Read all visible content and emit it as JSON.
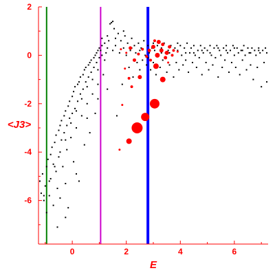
{
  "chart_data": {
    "type": "scatter",
    "title": "",
    "xlabel": "E",
    "ylabel": "<J3>",
    "xlim": [
      -1.25,
      7.25
    ],
    "ylim": [
      -7.8,
      2.0
    ],
    "x_ticks": [
      0,
      2,
      4,
      6
    ],
    "y_ticks": [
      2,
      0,
      -2,
      -4,
      -6
    ],
    "grid": false,
    "legend": "none",
    "colors": {
      "axes": "#ff0000",
      "tick_labels": "#ff0000",
      "axis_titles": "#ff0000",
      "black_points": "#000000",
      "red_points": "#ff0000"
    },
    "vlines": [
      {
        "x": -0.95,
        "color": "#008000"
      },
      {
        "x": 1.05,
        "color": "#cc00cc"
      },
      {
        "x": 2.8,
        "color": "#0000ff"
      }
    ],
    "red_points": [
      {
        "x": 2.4,
        "y": -3.0,
        "size": 8
      },
      {
        "x": 3.05,
        "y": -2.0,
        "size": 7
      },
      {
        "x": 2.7,
        "y": -2.55,
        "size": 6
      },
      {
        "x": 2.1,
        "y": -3.55,
        "size": 4
      },
      {
        "x": 3.35,
        "y": -1.0,
        "size": 4
      },
      {
        "x": 3.1,
        "y": -0.45,
        "size": 4
      },
      {
        "x": 1.75,
        "y": -3.9,
        "size": 1.5
      },
      {
        "x": 1.85,
        "y": -2.05,
        "size": 1.5
      },
      {
        "x": 2.5,
        "y": -0.9,
        "size": 3
      },
      {
        "x": 2.1,
        "y": -0.95,
        "size": 2
      },
      {
        "x": 2.2,
        "y": -1.3,
        "size": 2
      },
      {
        "x": 1.95,
        "y": -0.55,
        "size": 1.5
      },
      {
        "x": 2.3,
        "y": -0.2,
        "size": 2.5
      },
      {
        "x": 2.15,
        "y": 0.3,
        "size": 2.5
      },
      {
        "x": 2.6,
        "y": 0.25,
        "size": 2
      },
      {
        "x": 2.85,
        "y": 0.2,
        "size": 2.5
      },
      {
        "x": 3.0,
        "y": 0.35,
        "size": 3
      },
      {
        "x": 3.2,
        "y": 0.55,
        "size": 3
      },
      {
        "x": 3.35,
        "y": 0.45,
        "size": 2.5
      },
      {
        "x": 3.15,
        "y": 0.0,
        "size": 3.5
      },
      {
        "x": 3.5,
        "y": 0.1,
        "size": 3
      },
      {
        "x": 3.3,
        "y": 0.2,
        "size": 3
      },
      {
        "x": 3.6,
        "y": 0.35,
        "size": 2.5
      },
      {
        "x": 3.75,
        "y": 0.2,
        "size": 2
      },
      {
        "x": 3.45,
        "y": -0.1,
        "size": 2.5
      },
      {
        "x": 3.7,
        "y": 0.0,
        "size": 2
      },
      {
        "x": 2.9,
        "y": -0.2,
        "size": 2
      },
      {
        "x": 2.45,
        "y": 0.05,
        "size": 2
      },
      {
        "x": 3.9,
        "y": 0.15,
        "size": 1.5
      },
      {
        "x": 3.55,
        "y": -0.3,
        "size": 1.5
      },
      {
        "x": 1.8,
        "y": 0.25,
        "size": 1.5
      },
      {
        "x": 2.0,
        "y": 0.1,
        "size": 1.5
      },
      {
        "x": 3.05,
        "y": 0.6,
        "size": 2
      },
      {
        "x": 2.75,
        "y": -0.05,
        "size": 2
      }
    ],
    "black_points": [
      [
        -1.2,
        -5.2
      ],
      [
        -1.15,
        -5.7
      ],
      [
        -1.1,
        -4.9
      ],
      [
        -1.05,
        -6.0
      ],
      [
        -1.0,
        -5.4
      ],
      [
        -0.95,
        -4.6
      ],
      [
        -0.95,
        -6.5
      ],
      [
        -0.9,
        -4.3
      ],
      [
        -0.85,
        -5.8
      ],
      [
        -0.8,
        -4.1
      ],
      [
        -0.8,
        -5.1
      ],
      [
        -0.75,
        -3.8
      ],
      [
        -0.7,
        -4.5
      ],
      [
        -0.7,
        -6.2
      ],
      [
        -0.65,
        -3.6
      ],
      [
        -0.6,
        -4.8
      ],
      [
        -0.6,
        -3.3
      ],
      [
        -0.55,
        -5.5
      ],
      [
        -0.5,
        -3.1
      ],
      [
        -0.5,
        -4.2
      ],
      [
        -0.45,
        -2.9
      ],
      [
        -0.45,
        -5.9
      ],
      [
        -0.4,
        -3.5
      ],
      [
        -0.4,
        -2.7
      ],
      [
        -0.35,
        -4.6
      ],
      [
        -0.3,
        -2.5
      ],
      [
        -0.3,
        -3.2
      ],
      [
        -0.25,
        -2.3
      ],
      [
        -0.25,
        -5.3
      ],
      [
        -0.2,
        -2.9
      ],
      [
        -0.2,
        -3.9
      ],
      [
        -0.15,
        -2.1
      ],
      [
        -0.15,
        -6.3
      ],
      [
        -0.1,
        -2.6
      ],
      [
        -0.1,
        -1.9
      ],
      [
        -0.05,
        -3.4
      ],
      [
        0.0,
        -1.7
      ],
      [
        0.0,
        -2.4
      ],
      [
        0.05,
        -1.5
      ],
      [
        0.05,
        -4.4
      ],
      [
        0.1,
        -2.2
      ],
      [
        0.1,
        -1.3
      ],
      [
        0.15,
        -3.0
      ],
      [
        0.2,
        -1.2
      ],
      [
        0.2,
        -1.9
      ],
      [
        0.25,
        -1.1
      ],
      [
        0.25,
        -5.2
      ],
      [
        0.3,
        -1.6
      ],
      [
        0.3,
        -0.9
      ],
      [
        0.35,
        -2.5
      ],
      [
        0.4,
        -0.8
      ],
      [
        0.4,
        -1.4
      ],
      [
        0.45,
        -0.6
      ],
      [
        0.45,
        -3.7
      ],
      [
        0.5,
        -1.1
      ],
      [
        0.5,
        -0.5
      ],
      [
        0.55,
        -2.0
      ],
      [
        0.6,
        -0.4
      ],
      [
        0.6,
        -0.9
      ],
      [
        0.65,
        -0.3
      ],
      [
        0.65,
        -3.2
      ],
      [
        0.7,
        -0.7
      ],
      [
        0.7,
        -0.2
      ],
      [
        0.75,
        -1.6
      ],
      [
        0.8,
        -0.1
      ],
      [
        0.8,
        -0.5
      ],
      [
        0.85,
        0.0
      ],
      [
        0.85,
        -2.4
      ],
      [
        0.9,
        0.1
      ],
      [
        0.9,
        -0.3
      ],
      [
        0.95,
        0.2
      ],
      [
        0.95,
        -1.2
      ],
      [
        1.0,
        0.3
      ],
      [
        1.0,
        -0.1
      ],
      [
        1.05,
        0.2
      ],
      [
        1.1,
        0.4
      ],
      [
        1.1,
        0.0
      ],
      [
        1.15,
        -0.8
      ],
      [
        1.2,
        0.5
      ],
      [
        1.25,
        0.1
      ],
      [
        1.3,
        0.3
      ],
      [
        1.3,
        -1.4
      ],
      [
        1.35,
        0.6
      ],
      [
        1.4,
        1.3
      ],
      [
        1.45,
        1.35
      ],
      [
        1.5,
        1.4
      ],
      [
        1.5,
        0.2
      ],
      [
        1.55,
        1.1
      ],
      [
        1.6,
        0.4
      ],
      [
        1.65,
        -2.5
      ],
      [
        1.7,
        0.9
      ],
      [
        1.75,
        0.1
      ],
      [
        1.8,
        0.6
      ],
      [
        1.85,
        -1.2
      ],
      [
        1.9,
        0.3
      ],
      [
        1.95,
        0.8
      ],
      [
        2.0,
        0.0
      ],
      [
        2.05,
        0.5
      ],
      [
        2.1,
        -0.5
      ],
      [
        2.15,
        0.2
      ],
      [
        2.2,
        0.7
      ],
      [
        2.25,
        -0.9
      ],
      [
        2.3,
        0.4
      ],
      [
        2.35,
        0.1
      ],
      [
        2.4,
        -0.3
      ],
      [
        2.45,
        0.5
      ],
      [
        2.5,
        -0.6
      ],
      [
        2.55,
        0.3
      ],
      [
        2.6,
        -0.2
      ],
      [
        2.65,
        0.6
      ],
      [
        2.7,
        0.0
      ],
      [
        2.75,
        -0.4
      ],
      [
        2.8,
        0.4
      ],
      [
        2.85,
        0.1
      ],
      [
        2.9,
        -0.6
      ],
      [
        2.95,
        0.3
      ],
      [
        3.0,
        -0.3
      ],
      [
        3.05,
        0.2
      ],
      [
        3.1,
        -0.8
      ],
      [
        3.15,
        0.4
      ],
      [
        3.2,
        0.0
      ],
      [
        3.25,
        -0.5
      ],
      [
        3.3,
        0.3
      ],
      [
        3.35,
        -0.2
      ],
      [
        3.4,
        0.5
      ],
      [
        3.45,
        0.1
      ],
      [
        3.5,
        -0.7
      ],
      [
        3.55,
        0.2
      ],
      [
        3.6,
        -0.4
      ],
      [
        3.65,
        0.4
      ],
      [
        3.7,
        0.0
      ],
      [
        3.75,
        -0.9
      ],
      [
        3.8,
        0.3
      ],
      [
        3.85,
        -0.3
      ],
      [
        3.9,
        0.2
      ],
      [
        3.95,
        -0.6
      ],
      [
        4.0,
        0.4
      ],
      [
        4.05,
        0.0
      ],
      [
        4.1,
        -0.4
      ],
      [
        4.15,
        0.3
      ],
      [
        4.2,
        -0.2
      ],
      [
        4.25,
        0.5
      ],
      [
        4.3,
        -0.7
      ],
      [
        4.35,
        0.1
      ],
      [
        4.4,
        0.3
      ],
      [
        4.45,
        -0.3
      ],
      [
        4.5,
        0.4
      ],
      [
        4.55,
        0.0
      ],
      [
        4.6,
        -0.5
      ],
      [
        4.65,
        0.2
      ],
      [
        4.7,
        -0.1
      ],
      [
        4.75,
        0.4
      ],
      [
        4.8,
        -0.8
      ],
      [
        4.85,
        0.1
      ],
      [
        4.9,
        0.3
      ],
      [
        4.95,
        -0.3
      ],
      [
        5.0,
        0.2
      ],
      [
        5.05,
        -0.6
      ],
      [
        5.1,
        0.4
      ],
      [
        5.15,
        0.0
      ],
      [
        5.2,
        -0.4
      ],
      [
        5.25,
        0.3
      ],
      [
        5.3,
        -0.1
      ],
      [
        5.35,
        0.4
      ],
      [
        5.4,
        -0.9
      ],
      [
        5.45,
        0.2
      ],
      [
        5.5,
        0.0
      ],
      [
        5.55,
        -0.5
      ],
      [
        5.6,
        0.3
      ],
      [
        5.65,
        -0.2
      ],
      [
        5.7,
        0.4
      ],
      [
        5.75,
        0.1
      ],
      [
        5.8,
        -0.7
      ],
      [
        5.85,
        0.2
      ],
      [
        5.9,
        -0.3
      ],
      [
        5.95,
        0.4
      ],
      [
        6.0,
        0.0
      ],
      [
        6.05,
        -0.5
      ],
      [
        6.1,
        0.3
      ],
      [
        6.15,
        0.1
      ],
      [
        6.2,
        -0.8
      ],
      [
        6.25,
        0.2
      ],
      [
        6.3,
        -0.2
      ],
      [
        6.35,
        0.4
      ],
      [
        6.4,
        0.0
      ],
      [
        6.45,
        -0.6
      ],
      [
        6.5,
        0.3
      ],
      [
        6.55,
        0.1
      ],
      [
        6.6,
        -0.4
      ],
      [
        6.65,
        0.3
      ],
      [
        6.7,
        -1.0
      ],
      [
        6.75,
        0.2
      ],
      [
        6.8,
        0.0
      ],
      [
        6.85,
        -0.5
      ],
      [
        6.9,
        0.3
      ],
      [
        6.95,
        0.1
      ],
      [
        7.0,
        -1.3
      ],
      [
        7.05,
        0.2
      ],
      [
        7.1,
        -0.3
      ],
      [
        7.15,
        0.3
      ],
      [
        7.2,
        0.1
      ],
      [
        7.2,
        -1.1
      ],
      [
        1.3,
        0.8
      ],
      [
        1.6,
        0.7
      ],
      [
        1.9,
        1.0
      ],
      [
        2.2,
        0.3
      ],
      [
        2.5,
        0.2
      ],
      [
        2.8,
        -0.1
      ],
      [
        3.0,
        0.5
      ],
      [
        3.3,
        0.1
      ],
      [
        3.6,
        0.1
      ],
      [
        3.9,
        0.5
      ],
      [
        4.2,
        0.1
      ],
      [
        4.5,
        0.1
      ],
      [
        4.8,
        0.2
      ],
      [
        5.1,
        0.1
      ],
      [
        5.4,
        0.3
      ],
      [
        5.7,
        0.2
      ],
      [
        6.0,
        0.3
      ],
      [
        6.3,
        0.2
      ],
      [
        6.6,
        0.1
      ],
      [
        6.9,
        0.2
      ],
      [
        1.2,
        -0.2
      ],
      [
        1.1,
        0.7
      ],
      [
        0.95,
        -0.6
      ],
      [
        0.75,
        -1.0
      ],
      [
        0.55,
        -1.3
      ],
      [
        0.35,
        -1.8
      ],
      [
        0.15,
        -2.3
      ],
      [
        -0.05,
        -2.8
      ],
      [
        -0.25,
        -3.5
      ],
      [
        -0.45,
        -4.0
      ],
      [
        -0.65,
        -4.6
      ],
      [
        -0.85,
        -5.2
      ],
      [
        -1.05,
        -5.8
      ],
      [
        -0.55,
        -7.1
      ],
      [
        -0.25,
        -6.7
      ],
      [
        0.15,
        -4.9
      ],
      [
        0.55,
        -2.6
      ],
      [
        0.95,
        -1.8
      ]
    ]
  }
}
